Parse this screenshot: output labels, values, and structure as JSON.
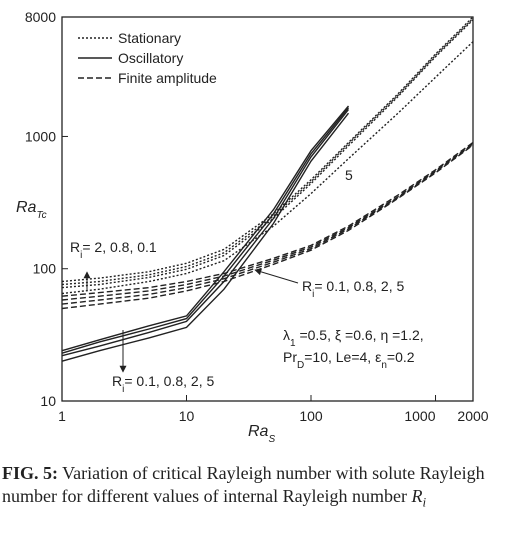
{
  "chart_data": {
    "type": "line",
    "log_x": true,
    "log_y": true,
    "x": [
      1,
      2,
      5,
      10,
      20,
      50,
      100,
      200,
      500,
      1000,
      2000
    ],
    "xlim": [
      1,
      2000
    ],
    "ylim": [
      10,
      8000
    ],
    "xticks": [
      1,
      10,
      100,
      1000,
      2000
    ],
    "yticks": [
      10,
      100,
      1000,
      8000
    ],
    "xlabel": [
      {
        "t": "Ra"
      },
      {
        "t": "S",
        "sub": true
      }
    ],
    "ylabel": [
      {
        "t": "Ra"
      },
      {
        "t": "Tc",
        "sub": true
      }
    ],
    "color": "#222222",
    "groups": [
      {
        "name": "Stationary",
        "dash": "dotted",
        "curves": [
          [
            80,
            85,
            95,
            110,
            140,
            260,
            470,
            900,
            2100,
            4200,
            8000
          ],
          [
            76,
            80,
            90,
            104,
            132,
            250,
            455,
            880,
            2050,
            4100,
            7800
          ],
          [
            72,
            76,
            86,
            99,
            126,
            240,
            440,
            850,
            2000,
            4000,
            7600
          ],
          [
            65,
            70,
            80,
            92,
            115,
            210,
            370,
            680,
            1500,
            2800,
            5200
          ]
        ]
      },
      {
        "name": "Oscillatory",
        "dash": "solid",
        "curves": [
          [
            24,
            29,
            37,
            44,
            95,
            280,
            780,
            1700,
            null,
            null,
            null
          ],
          [
            23,
            28,
            35,
            42,
            88,
            260,
            740,
            1650,
            null,
            null,
            null
          ],
          [
            22,
            26,
            33,
            40,
            80,
            240,
            700,
            1600,
            null,
            null,
            null
          ],
          [
            20,
            24,
            30,
            36,
            70,
            220,
            650,
            1500,
            null,
            null,
            null
          ]
        ]
      },
      {
        "name": "Finite amplitude",
        "dash": "dashed",
        "curves": [
          [
            62,
            66,
            72,
            80,
            92,
            120,
            150,
            210,
            360,
            560,
            900
          ],
          [
            58,
            62,
            68,
            76,
            88,
            116,
            146,
            205,
            350,
            550,
            880
          ],
          [
            54,
            58,
            64,
            72,
            84,
            112,
            142,
            200,
            345,
            540,
            870
          ],
          [
            50,
            54,
            60,
            68,
            80,
            108,
            138,
            195,
            340,
            530,
            860
          ]
        ]
      }
    ],
    "annotations": [
      [
        {
          "t": "R"
        },
        {
          "t": "i",
          "sub": true
        },
        {
          "t": "= 2, 0.8, 0.1"
        }
      ],
      [
        {
          "t": "R"
        },
        {
          "t": "i",
          "sub": true
        },
        {
          "t": "= 0.1, 0.8, 2, 5"
        }
      ],
      [
        {
          "t": "R"
        },
        {
          "t": "i",
          "sub": true
        },
        {
          "t": "= 0.1, 0.8, 2, 5"
        }
      ],
      [
        {
          "t": "5"
        }
      ],
      [
        {
          "t": "λ"
        },
        {
          "t": "1",
          "sub": true
        },
        {
          "t": " =0.5, ξ =0.6, η =1.2,"
        }
      ],
      [
        {
          "t": "Pr"
        },
        {
          "t": "D",
          "sub": true
        },
        {
          "t": "=10, "
        },
        {
          "t": "Le"
        },
        {
          "t": "=4, ε"
        },
        {
          "t": "n",
          "sub": true
        },
        {
          "t": "=0.2"
        }
      ]
    ],
    "caption": [
      {
        "t": "FIG. 5:",
        "bold": true
      },
      {
        "t": " Variation of critical Rayleigh number with solute Rayleigh number for different values of internal Rayleigh number "
      },
      {
        "t": "R",
        "math": true
      },
      {
        "t": "i",
        "sub": true,
        "math": true
      }
    ]
  }
}
